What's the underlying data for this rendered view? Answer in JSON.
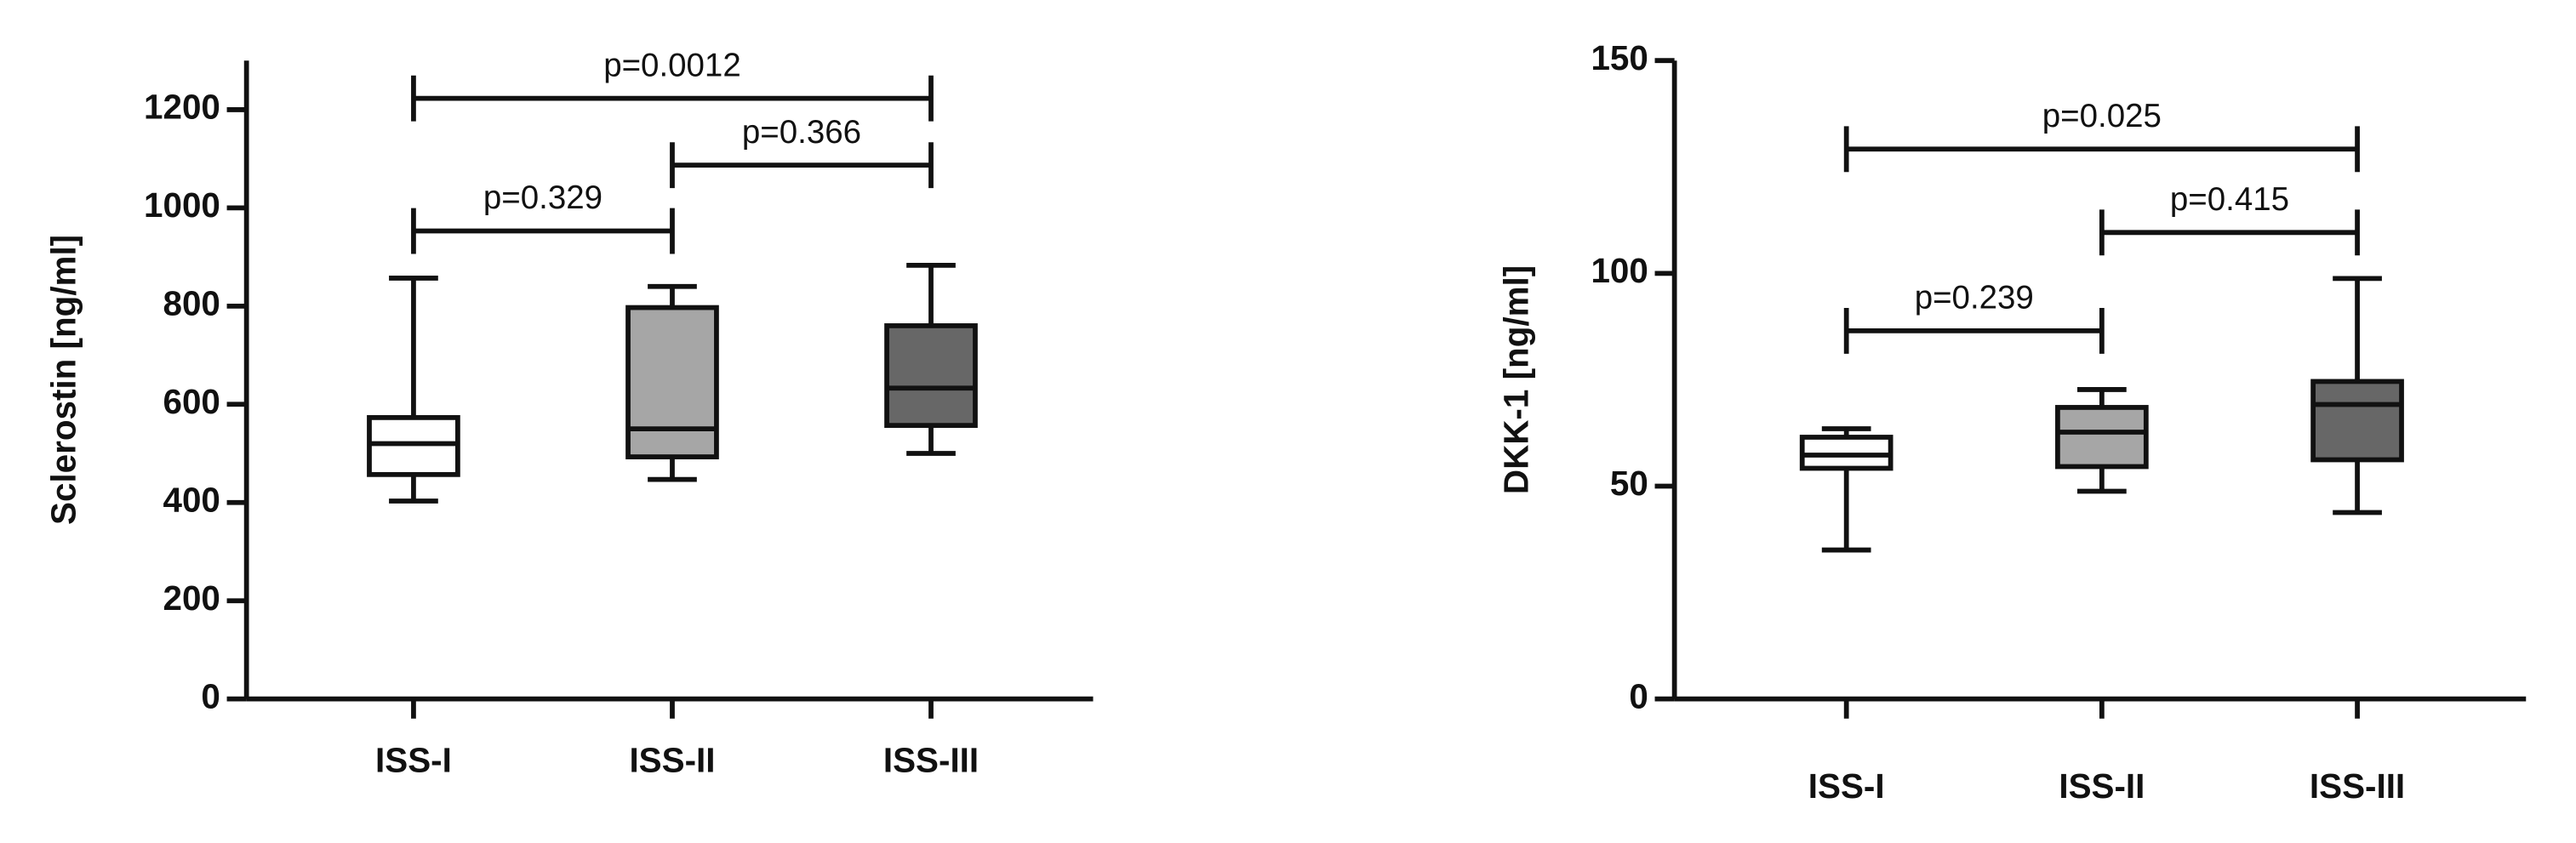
{
  "chart_data": [
    {
      "type": "box",
      "y_label": "Sclerostin [ng/ml]",
      "categories": [
        "ISS-I",
        "ISS-II",
        "ISS-III"
      ],
      "min": [
        403,
        447,
        500
      ],
      "q1": [
        457,
        493,
        557
      ],
      "median": [
        520,
        550,
        633
      ],
      "q3": [
        573,
        797,
        760
      ],
      "max": [
        857,
        840,
        883
      ],
      "colors": [
        "#ffffff",
        "#a6a6a6",
        "#676767"
      ],
      "ylim": [
        0,
        1300
      ],
      "yticks": [
        0,
        200,
        400,
        600,
        800,
        1000,
        1200
      ],
      "annotations": [
        {
          "text": "p=0.329",
          "from": 0,
          "to": 1,
          "y": 953
        },
        {
          "text": "p=0.366",
          "from": 1,
          "to": 2,
          "y": 1087
        },
        {
          "text": "p=0.0012",
          "from": 0,
          "to": 2,
          "y": 1223
        }
      ]
    },
    {
      "type": "box",
      "y_label": "DKK-1 [ng/ml]",
      "categories": [
        "ISS-I",
        "ISS-II",
        "ISS-III"
      ],
      "min": [
        35,
        48.8,
        43.8
      ],
      "q1": [
        54.2,
        54.6,
        56.2
      ],
      "median": [
        57.3,
        62.7,
        69.2
      ],
      "q3": [
        61.5,
        68.5,
        74.6
      ],
      "max": [
        63.5,
        72.7,
        98.8
      ],
      "colors": [
        "#ffffff",
        "#a6a6a6",
        "#676767"
      ],
      "ylim": [
        0,
        150
      ],
      "yticks": [
        0,
        50,
        100,
        150
      ],
      "annotations": [
        {
          "text": "p=0.239",
          "from": 0,
          "to": 1,
          "y": 86.5
        },
        {
          "text": "p=0.415",
          "from": 1,
          "to": 2,
          "y": 109.6
        },
        {
          "text": "p=0.025",
          "from": 0,
          "to": 2,
          "y": 129.2
        }
      ]
    }
  ]
}
